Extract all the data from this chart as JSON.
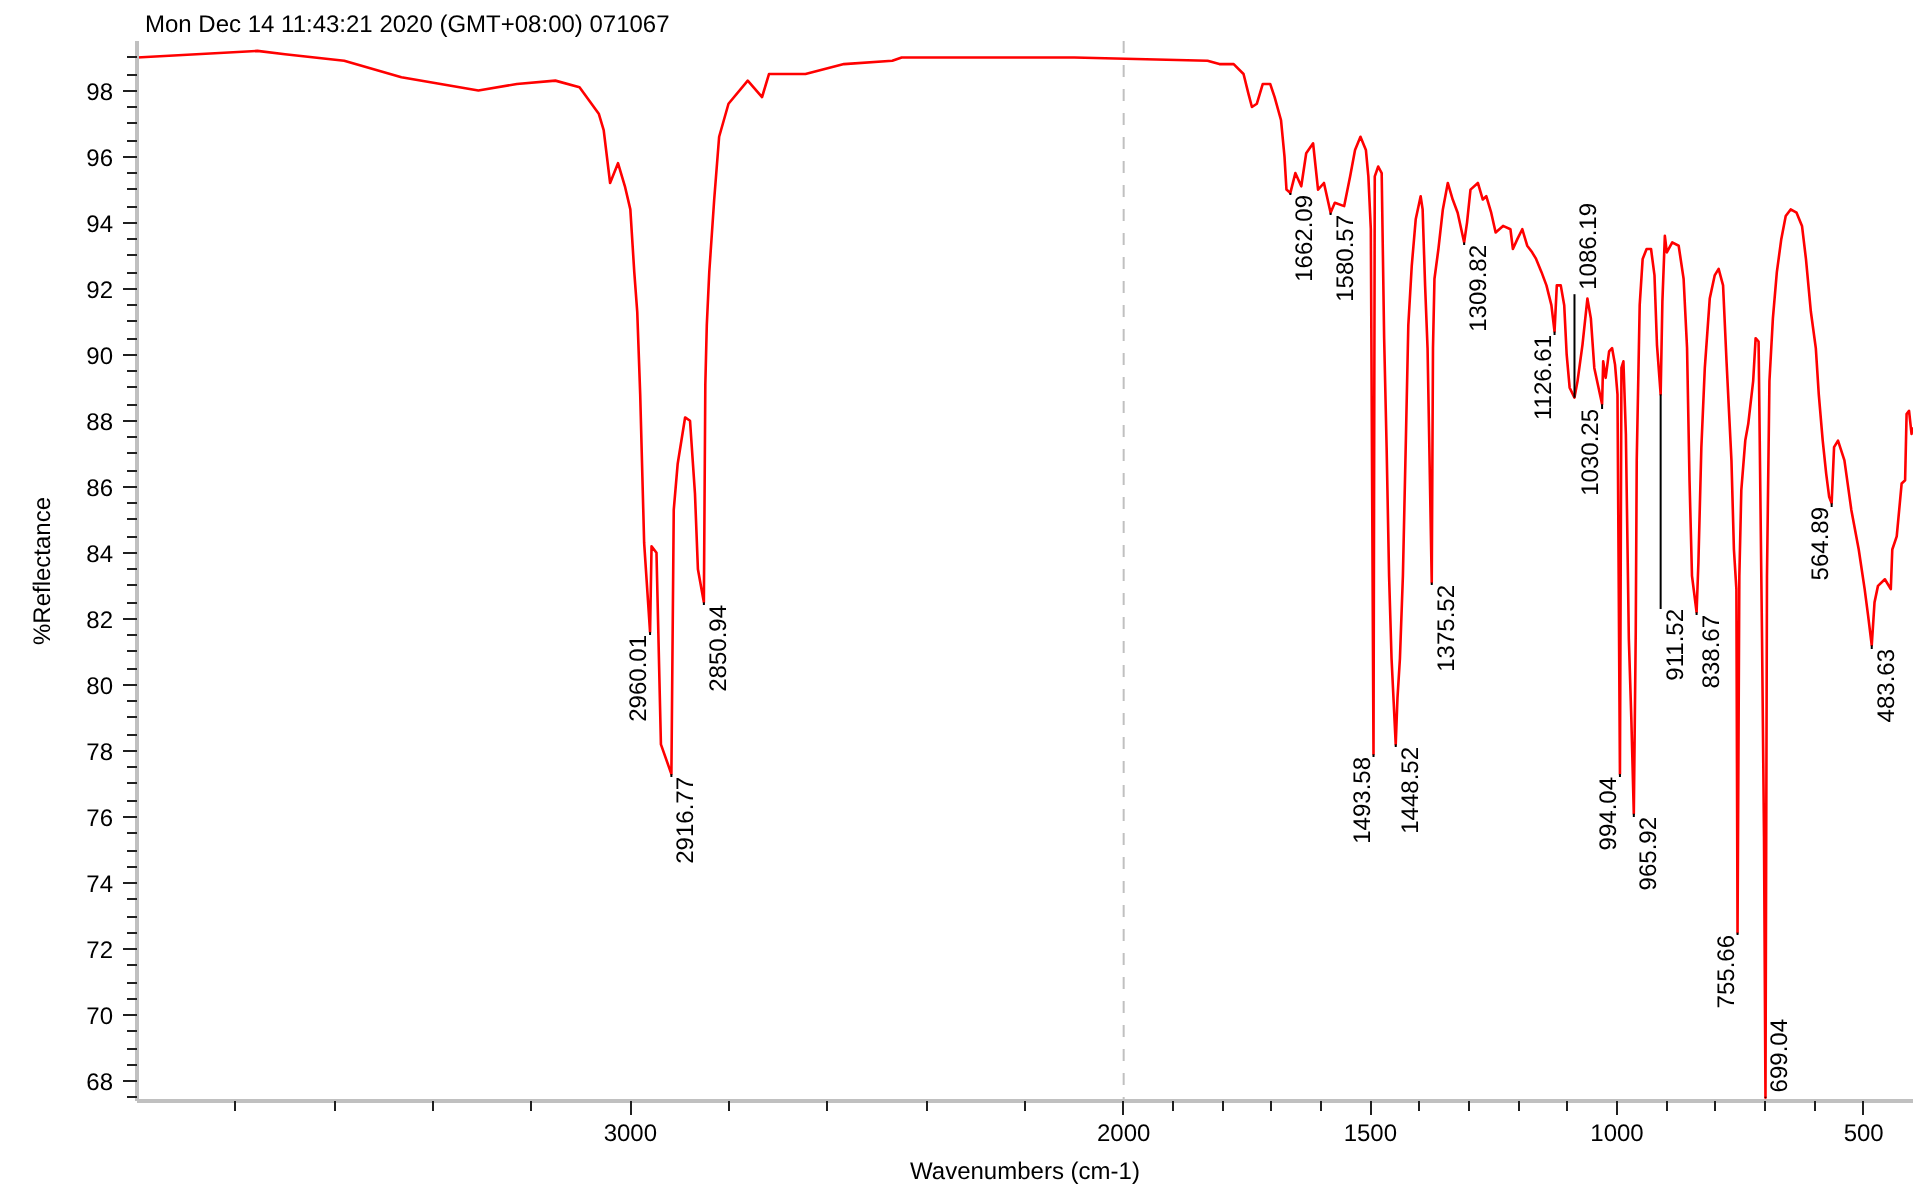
{
  "chart_data": {
    "type": "line",
    "xlabel": "Wavenumbers (cm-1)",
    "ylabel": "%Reflectance",
    "line_style": "solid",
    "x": [
      4000,
      3756,
      3700,
      3580,
      3464,
      3308,
      3230,
      3152,
      3103,
      3064,
      3054,
      3041,
      3025,
      3011,
      3000,
      2992,
      2986,
      2980,
      2972,
      2960.01,
      2957,
      2947,
      2938,
      2916.77,
      2912,
      2904,
      2889,
      2879,
      2869,
      2863,
      2850.94,
      2848,
      2845,
      2840,
      2830,
      2820,
      2801,
      2762,
      2733,
      2719,
      2645,
      2567,
      2469,
      2450,
      2275,
      2100,
      1830,
      1806,
      1777,
      1757,
      1747,
      1740,
      1730,
      1718,
      1703,
      1694,
      1681,
      1674,
      1670,
      1662.09,
      1652,
      1640,
      1630,
      1616,
      1606,
      1594,
      1580.57,
      1572,
      1553,
      1541,
      1531,
      1520,
      1509,
      1504,
      1499,
      1493.58,
      1491,
      1484,
      1477,
      1472,
      1467,
      1462,
      1457,
      1448.52,
      1445,
      1440,
      1434,
      1428,
      1423,
      1416,
      1408,
      1398,
      1394,
      1389,
      1384,
      1375.52,
      1373,
      1370,
      1362,
      1353,
      1343,
      1333,
      1323,
      1309.82,
      1304,
      1297,
      1282,
      1272,
      1265,
      1255,
      1246,
      1231,
      1216,
      1211,
      1202,
      1192,
      1182,
      1172,
      1164,
      1153,
      1143,
      1133,
      1126.61,
      1122,
      1114,
      1107,
      1102,
      1096,
      1086.19,
      1080,
      1070,
      1060,
      1053,
      1046,
      1030.25,
      1028,
      1023,
      1016,
      1010,
      1004,
      999,
      994.04,
      991,
      987,
      982,
      976,
      971,
      965.92,
      962,
      960,
      954,
      948,
      940,
      931,
      924,
      919,
      911.52,
      908,
      903,
      899,
      888,
      875,
      865,
      858,
      853,
      848,
      838.67,
      835,
      829,
      822,
      812,
      802,
      794,
      785,
      778,
      768,
      763,
      758,
      755.66,
      752,
      748,
      740,
      734,
      724,
      719,
      713,
      706,
      702,
      699.04,
      696,
      691,
      684,
      676,
      667,
      658,
      648,
      636,
      625,
      617,
      607,
      597,
      591,
      583,
      576,
      570,
      564.89,
      560,
      552,
      539,
      525,
      510,
      498,
      491,
      483.63,
      478,
      471,
      457,
      445,
      442,
      433,
      423,
      416,
      413,
      408,
      403,
      400
    ],
    "series": [
      {
        "color": "#ff0000",
        "values": [
          99.0,
          99.2,
          99.1,
          98.9,
          98.4,
          98.0,
          98.2,
          98.3,
          98.1,
          97.3,
          96.8,
          95.2,
          95.8,
          95.1,
          94.4,
          92.5,
          91.3,
          88.8,
          84.3,
          81.6,
          84.2,
          84.0,
          78.2,
          77.3,
          85.3,
          86.7,
          88.1,
          88.0,
          85.8,
          83.5,
          82.5,
          89.1,
          90.9,
          92.5,
          94.7,
          96.6,
          97.6,
          98.3,
          97.8,
          98.5,
          98.5,
          98.8,
          98.9,
          99.0,
          99.0,
          99.0,
          98.9,
          98.8,
          98.8,
          98.5,
          97.9,
          97.5,
          97.6,
          98.2,
          98.2,
          97.8,
          97.1,
          96.0,
          95.0,
          94.9,
          95.5,
          95.1,
          96.1,
          96.4,
          95.0,
          95.2,
          94.3,
          94.6,
          94.5,
          95.4,
          96.2,
          96.6,
          96.2,
          95.4,
          93.8,
          77.9,
          95.4,
          95.7,
          95.5,
          90.5,
          87.2,
          83.3,
          80.8,
          78.2,
          79.6,
          80.8,
          83.3,
          87.4,
          90.9,
          92.7,
          94.1,
          94.8,
          94.4,
          92.1,
          90.2,
          83.1,
          90.2,
          92.3,
          93.2,
          94.4,
          95.2,
          94.7,
          94.3,
          93.4,
          94.0,
          95.0,
          95.2,
          94.7,
          94.8,
          94.3,
          93.7,
          93.9,
          93.8,
          93.2,
          93.5,
          93.8,
          93.3,
          93.1,
          92.9,
          92.5,
          92.1,
          91.5,
          90.7,
          92.1,
          92.1,
          91.5,
          90.0,
          89.0,
          88.7,
          89.2,
          90.3,
          91.7,
          91.1,
          89.6,
          88.5,
          89.8,
          89.3,
          90.1,
          90.2,
          89.7,
          88.8,
          77.3,
          89.6,
          89.8,
          87.6,
          81.4,
          79.0,
          76.1,
          81.6,
          86.8,
          91.5,
          92.9,
          93.2,
          93.2,
          92.4,
          90.3,
          88.8,
          91.6,
          93.6,
          93.1,
          93.4,
          93.3,
          92.3,
          90.2,
          86.2,
          83.3,
          82.2,
          83.7,
          87.2,
          89.6,
          91.7,
          92.4,
          92.6,
          92.1,
          89.8,
          86.8,
          84.1,
          82.9,
          72.5,
          83.3,
          85.9,
          87.4,
          87.9,
          89.2,
          90.5,
          90.4,
          81.4,
          75.4,
          67.5,
          83.3,
          89.2,
          91.1,
          92.5,
          93.5,
          94.2,
          94.4,
          94.3,
          93.9,
          92.9,
          91.3,
          90.2,
          88.8,
          87.4,
          86.4,
          85.7,
          85.5,
          87.2,
          87.4,
          86.8,
          85.3,
          84.1,
          82.9,
          82.1,
          81.2,
          82.5,
          83.0,
          83.2,
          82.9,
          84.1,
          84.5,
          86.1,
          86.2,
          88.2,
          88.3,
          87.6,
          87.8
        ]
      }
    ],
    "xlim": [
      4000,
      400
    ],
    "ylim": [
      67.4,
      99.5
    ],
    "xticks": [
      3000,
      2000,
      1500,
      1000,
      500,
      {
        "value": 3800,
        "label": null
      },
      {
        "value": 3600,
        "label": null
      },
      {
        "value": 3400,
        "label": null
      },
      {
        "value": 3200,
        "label": null
      },
      {
        "value": 2800,
        "label": null
      },
      {
        "value": 2600,
        "label": null
      },
      {
        "value": 2400,
        "label": null
      },
      {
        "value": 2200,
        "label": null
      },
      {
        "value": 1900,
        "label": null
      },
      {
        "value": 1800,
        "label": null
      },
      {
        "value": 1700,
        "label": null
      },
      {
        "value": 1600,
        "label": null
      },
      {
        "value": 1400,
        "label": null
      },
      {
        "value": 1300,
        "label": null
      },
      {
        "value": 1200,
        "label": null
      },
      {
        "value": 1100,
        "label": null
      },
      {
        "value": 900,
        "label": null
      },
      {
        "value": 800,
        "label": null
      },
      {
        "value": 700,
        "label": null
      },
      {
        "value": 600,
        "label": null
      }
    ],
    "yticks": [
      68,
      70,
      72,
      74,
      76,
      78,
      80,
      82,
      84,
      86,
      88,
      90,
      92,
      94,
      96,
      98,
      {
        "value": 67.5,
        "label": null
      },
      {
        "value": 68.5,
        "label": null
      },
      {
        "value": 69,
        "label": null
      },
      {
        "value": 69.5,
        "label": null
      },
      {
        "value": 70.5,
        "label": null
      },
      {
        "value": 71,
        "label": null
      },
      {
        "value": 71.5,
        "label": null
      },
      {
        "value": 72.5,
        "label": null
      },
      {
        "value": 73,
        "label": null
      },
      {
        "value": 73.5,
        "label": null
      },
      {
        "value": 74.5,
        "label": null
      },
      {
        "value": 75,
        "label": null
      },
      {
        "value": 75.5,
        "label": null
      },
      {
        "value": 76.5,
        "label": null
      },
      {
        "value": 77,
        "label": null
      },
      {
        "value": 77.5,
        "label": null
      },
      {
        "value": 78.5,
        "label": null
      },
      {
        "value": 79,
        "label": null
      },
      {
        "value": 79.5,
        "label": null
      },
      {
        "value": 80.5,
        "label": null
      },
      {
        "value": 81,
        "label": null
      },
      {
        "value": 81.5,
        "label": null
      },
      {
        "value": 82.5,
        "label": null
      },
      {
        "value": 83,
        "label": null
      },
      {
        "value": 83.5,
        "label": null
      },
      {
        "value": 84.5,
        "label": null
      },
      {
        "value": 85,
        "label": null
      },
      {
        "value": 85.5,
        "label": null
      },
      {
        "value": 86.5,
        "label": null
      },
      {
        "value": 87,
        "label": null
      },
      {
        "value": 87.5,
        "label": null
      },
      {
        "value": 88.5,
        "label": null
      },
      {
        "value": 89,
        "label": null
      },
      {
        "value": 89.5,
        "label": null
      },
      {
        "value": 90.5,
        "label": null
      },
      {
        "value": 91,
        "label": null
      },
      {
        "value": 91.5,
        "label": null
      },
      {
        "value": 92.5,
        "label": null
      },
      {
        "value": 93,
        "label": null
      },
      {
        "value": 93.5,
        "label": null
      },
      {
        "value": 94.5,
        "label": null
      },
      {
        "value": 95,
        "label": null
      },
      {
        "value": 95.5,
        "label": null
      },
      {
        "value": 96.5,
        "label": null
      },
      {
        "value": 97,
        "label": null
      },
      {
        "value": 97.5,
        "label": null
      },
      {
        "value": 98.5,
        "label": null
      },
      {
        "value": 99,
        "label": null
      }
    ],
    "ref_lines": [
      {
        "axis": "x",
        "value": 2000,
        "color": "#c0c0c0",
        "line_style": "dashed"
      }
    ],
    "annotations": [
      "Mon Dec 14 11:43:21 2020 (GMT+08:00) 071067",
      {
        "text": "2960.01",
        "x": 2960.01,
        "y": 81.6
      },
      {
        "text": "2916.77",
        "x": 2916.77,
        "y": 77.3
      },
      {
        "text": "2850.94",
        "x": 2850.94,
        "y": 82.5
      },
      {
        "text": "1662.09",
        "x": 1662.09,
        "y": 94.9
      },
      {
        "text": "1580.57",
        "x": 1580.57,
        "y": 94.3
      },
      {
        "text": "1493.58",
        "x": 1493.58,
        "y": 77.9
      },
      {
        "text": "1448.52",
        "x": 1448.52,
        "y": 78.2
      },
      {
        "text": "1375.52",
        "x": 1375.52,
        "y": 83.1
      },
      {
        "text": "1309.82",
        "x": 1309.82,
        "y": 93.4
      },
      {
        "text": "1126.61",
        "x": 1126.61,
        "y": 90.7
      },
      {
        "text": "1086.19",
        "x": 1086.19,
        "y": 88.7
      },
      {
        "text": "1030.25",
        "x": 1030.25,
        "y": 88.5
      },
      {
        "text": "994.04",
        "x": 994.04,
        "y": 77.3
      },
      {
        "text": "965.92",
        "x": 965.92,
        "y": 76.1
      },
      {
        "text": "911.52",
        "x": 911.52,
        "y": 88.8
      },
      {
        "text": "838.67",
        "x": 838.67,
        "y": 82.2
      },
      {
        "text": "755.66",
        "x": 755.66,
        "y": 72.5
      },
      {
        "text": "699.04",
        "x": 699.04,
        "y": 67.5
      },
      {
        "text": "564.89",
        "x": 564.89,
        "y": 85.5
      },
      {
        "text": "483.63",
        "x": 483.63,
        "y": 81.2
      }
    ]
  }
}
